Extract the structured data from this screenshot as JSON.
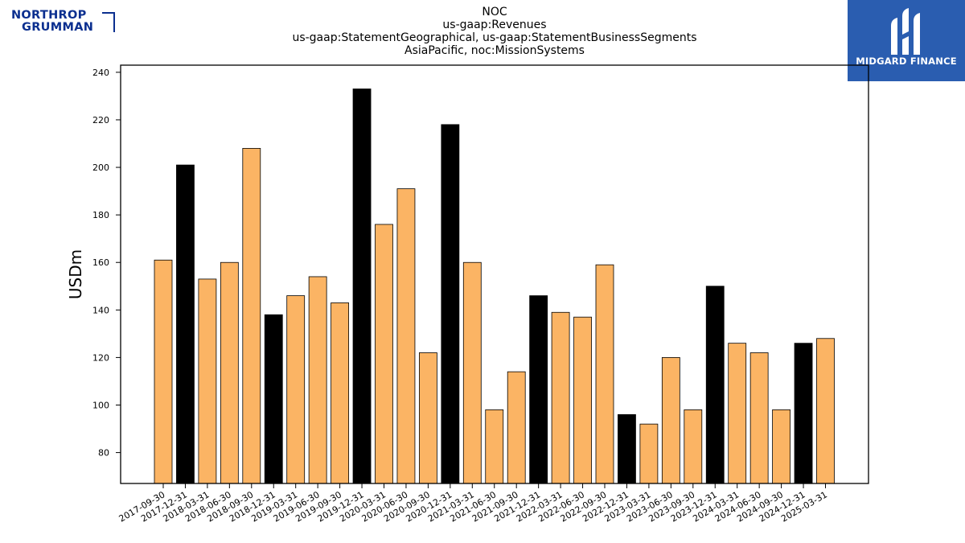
{
  "header": {
    "title_lines": [
      "NOC",
      "us-gaap:Revenues",
      "us-gaap:StatementGeographical, us-gaap:StatementBusinessSegments",
      "AsiaPacific, noc:MissionSystems"
    ]
  },
  "logos": {
    "left": {
      "line1": "NORTHROP",
      "line2": "GRUMMAN",
      "color": "#0b2f8f"
    },
    "right": {
      "text": "MIDGARD FINANCE",
      "background": "#2a5db0"
    }
  },
  "chart_data": {
    "type": "bar",
    "ylabel": "USDm",
    "xlabel": "",
    "ylim": [
      67,
      243
    ],
    "yticks": [
      80,
      100,
      120,
      140,
      160,
      180,
      200,
      220,
      240
    ],
    "grid": false,
    "colors": {
      "default": "#fbb464",
      "highlight": "#000000",
      "edge": "#000000"
    },
    "categories": [
      "2017-09-30",
      "2017-12-31",
      "2018-03-31",
      "2018-06-30",
      "2018-09-30",
      "2018-12-31",
      "2019-03-31",
      "2019-06-30",
      "2019-09-30",
      "2019-12-31",
      "2020-03-31",
      "2020-06-30",
      "2020-09-30",
      "2020-12-31",
      "2021-03-31",
      "2021-06-30",
      "2021-09-30",
      "2021-12-31",
      "2022-03-31",
      "2022-06-30",
      "2022-09-30",
      "2022-12-31",
      "2023-03-31",
      "2023-06-30",
      "2023-09-30",
      "2023-12-31",
      "2024-03-31",
      "2024-06-30",
      "2024-09-30",
      "2024-12-31",
      "2025-03-31"
    ],
    "values": [
      161,
      201,
      153,
      160,
      208,
      138,
      146,
      154,
      143,
      233,
      176,
      191,
      122,
      218,
      160,
      98,
      114,
      146,
      139,
      137,
      159,
      96,
      92,
      120,
      98,
      150,
      126,
      122,
      98,
      126,
      128
    ],
    "highlight": [
      false,
      true,
      false,
      false,
      false,
      true,
      false,
      false,
      false,
      true,
      false,
      false,
      false,
      true,
      false,
      false,
      false,
      true,
      false,
      false,
      false,
      true,
      false,
      false,
      false,
      true,
      false,
      false,
      false,
      true,
      false
    ]
  }
}
